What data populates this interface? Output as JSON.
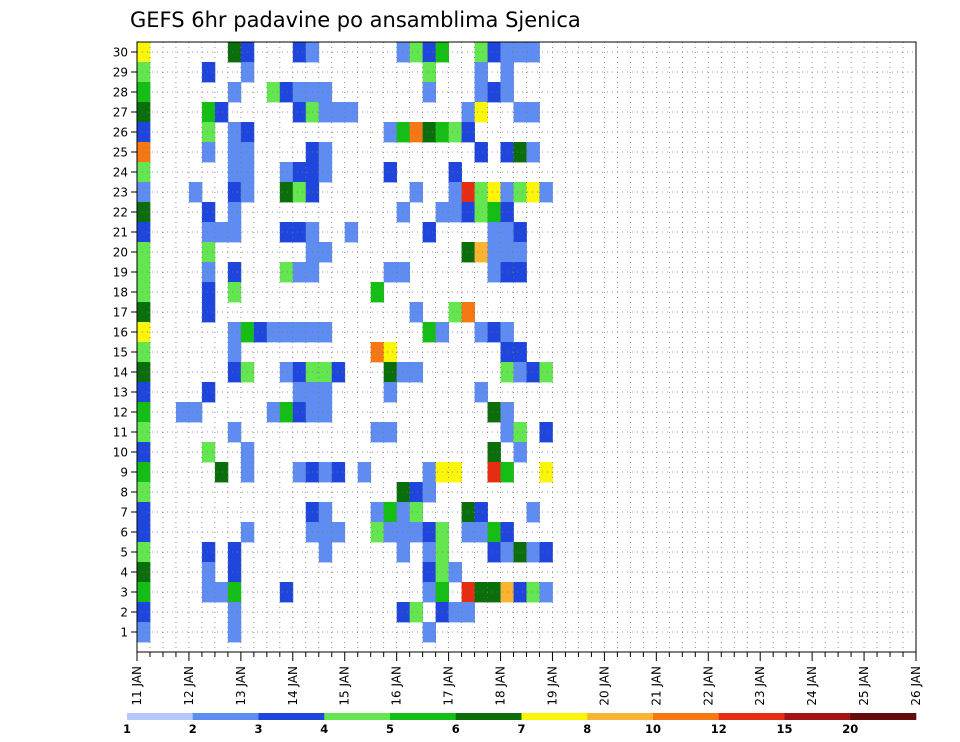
{
  "chart_data": {
    "type": "heatmap",
    "title": "GEFS 6hr padavine po ansamblima Sjenica",
    "xlabel": "",
    "ylabel": "",
    "x_tick_labels": [
      "11 JAN",
      "12 JAN",
      "13 JAN",
      "14 JAN",
      "15 JAN",
      "16 JAN",
      "17 JAN",
      "18 JAN",
      "19 JAN",
      "20 JAN",
      "21 JAN",
      "22 JAN",
      "23 JAN",
      "24 JAN",
      "25 JAN",
      "26 JAN"
    ],
    "y_tick_labels": [
      "1",
      "2",
      "3",
      "4",
      "5",
      "6",
      "7",
      "8",
      "9",
      "10",
      "11",
      "12",
      "13",
      "14",
      "15",
      "16",
      "17",
      "18",
      "19",
      "20",
      "21",
      "22",
      "23",
      "24",
      "25",
      "26",
      "27",
      "28",
      "29",
      "30"
    ],
    "x_range_days": [
      11,
      26
    ],
    "time_step_hours": 6,
    "ensemble_members": 30,
    "grid": "dotted",
    "colorbar": {
      "position": "bottom",
      "labels": [
        "1",
        "2",
        "3",
        "4",
        "5",
        "6",
        "7",
        "8",
        "10",
        "12",
        "15",
        "20"
      ],
      "colors": [
        "#b4c8fa",
        "#5f8cf0",
        "#1e46dc",
        "#64e650",
        "#14be14",
        "#0a6e0a",
        "#faf50a",
        "#fab432",
        "#f57814",
        "#e62d14",
        "#a51414",
        "#640a0a"
      ]
    },
    "cells": [
      [
        30,
        0,
        6
      ],
      [
        30,
        7,
        5
      ],
      [
        30,
        8,
        2
      ],
      [
        30,
        12,
        2
      ],
      [
        30,
        13,
        1
      ],
      [
        30,
        20,
        1
      ],
      [
        30,
        21,
        3
      ],
      [
        30,
        22,
        2
      ],
      [
        30,
        23,
        4
      ],
      [
        30,
        26,
        3
      ],
      [
        30,
        27,
        2
      ],
      [
        30,
        28,
        1
      ],
      [
        30,
        29,
        1
      ],
      [
        30,
        30,
        1
      ],
      [
        29,
        0,
        3
      ],
      [
        29,
        5,
        2
      ],
      [
        29,
        8,
        1
      ],
      [
        29,
        22,
        3
      ],
      [
        29,
        26,
        1
      ],
      [
        29,
        28,
        1
      ],
      [
        28,
        0,
        4
      ],
      [
        28,
        7,
        1
      ],
      [
        28,
        10,
        3
      ],
      [
        28,
        11,
        2
      ],
      [
        28,
        12,
        1
      ],
      [
        28,
        13,
        1
      ],
      [
        28,
        14,
        1
      ],
      [
        28,
        22,
        1
      ],
      [
        28,
        26,
        1
      ],
      [
        28,
        27,
        2
      ],
      [
        28,
        28,
        1
      ],
      [
        27,
        0,
        5
      ],
      [
        27,
        5,
        4
      ],
      [
        27,
        6,
        2
      ],
      [
        27,
        12,
        2
      ],
      [
        27,
        13,
        3
      ],
      [
        27,
        14,
        1
      ],
      [
        27,
        15,
        1
      ],
      [
        27,
        16,
        1
      ],
      [
        27,
        25,
        1
      ],
      [
        27,
        26,
        6
      ],
      [
        27,
        29,
        1
      ],
      [
        27,
        30,
        1
      ],
      [
        26,
        0,
        2
      ],
      [
        26,
        5,
        3
      ],
      [
        26,
        7,
        1
      ],
      [
        26,
        8,
        2
      ],
      [
        26,
        19,
        1
      ],
      [
        26,
        20,
        4
      ],
      [
        26,
        21,
        8
      ],
      [
        26,
        22,
        5
      ],
      [
        26,
        23,
        4
      ],
      [
        26,
        24,
        3
      ],
      [
        26,
        25,
        2
      ],
      [
        25,
        0,
        8
      ],
      [
        25,
        5,
        1
      ],
      [
        25,
        7,
        1
      ],
      [
        25,
        8,
        1
      ],
      [
        25,
        13,
        2
      ],
      [
        25,
        14,
        1
      ],
      [
        25,
        26,
        2
      ],
      [
        25,
        28,
        2
      ],
      [
        25,
        29,
        5
      ],
      [
        25,
        30,
        1
      ],
      [
        24,
        0,
        3
      ],
      [
        24,
        7,
        1
      ],
      [
        24,
        8,
        1
      ],
      [
        24,
        11,
        1
      ],
      [
        24,
        12,
        2
      ],
      [
        24,
        13,
        2
      ],
      [
        24,
        14,
        1
      ],
      [
        24,
        19,
        2
      ],
      [
        24,
        24,
        2
      ],
      [
        23,
        0,
        1
      ],
      [
        23,
        4,
        1
      ],
      [
        23,
        7,
        2
      ],
      [
        23,
        8,
        1
      ],
      [
        23,
        11,
        5
      ],
      [
        23,
        12,
        3
      ],
      [
        23,
        13,
        2
      ],
      [
        23,
        21,
        1
      ],
      [
        23,
        24,
        1
      ],
      [
        23,
        25,
        9
      ],
      [
        23,
        26,
        3
      ],
      [
        23,
        27,
        6
      ],
      [
        23,
        28,
        1
      ],
      [
        23,
        29,
        3
      ],
      [
        23,
        30,
        6
      ],
      [
        23,
        31,
        1
      ],
      [
        22,
        0,
        5
      ],
      [
        22,
        5,
        2
      ],
      [
        22,
        7,
        1
      ],
      [
        22,
        20,
        1
      ],
      [
        22,
        23,
        1
      ],
      [
        22,
        24,
        1
      ],
      [
        22,
        25,
        2
      ],
      [
        22,
        26,
        3
      ],
      [
        22,
        27,
        4
      ],
      [
        22,
        28,
        2
      ],
      [
        21,
        0,
        2
      ],
      [
        21,
        5,
        1
      ],
      [
        21,
        6,
        1
      ],
      [
        21,
        7,
        1
      ],
      [
        21,
        11,
        2
      ],
      [
        21,
        12,
        2
      ],
      [
        21,
        13,
        1
      ],
      [
        21,
        16,
        1
      ],
      [
        21,
        22,
        2
      ],
      [
        21,
        27,
        1
      ],
      [
        21,
        28,
        1
      ],
      [
        21,
        29,
        2
      ],
      [
        20,
        0,
        3
      ],
      [
        20,
        5,
        3
      ],
      [
        20,
        13,
        1
      ],
      [
        20,
        14,
        1
      ],
      [
        20,
        25,
        5
      ],
      [
        20,
        26,
        7
      ],
      [
        20,
        27,
        1
      ],
      [
        20,
        28,
        1
      ],
      [
        20,
        29,
        1
      ],
      [
        19,
        0,
        3
      ],
      [
        19,
        5,
        1
      ],
      [
        19,
        7,
        2
      ],
      [
        19,
        11,
        3
      ],
      [
        19,
        12,
        1
      ],
      [
        19,
        13,
        1
      ],
      [
        19,
        19,
        1
      ],
      [
        19,
        20,
        1
      ],
      [
        19,
        27,
        1
      ],
      [
        19,
        28,
        2
      ],
      [
        19,
        29,
        2
      ],
      [
        18,
        0,
        3
      ],
      [
        18,
        5,
        2
      ],
      [
        18,
        7,
        3
      ],
      [
        18,
        18,
        4
      ],
      [
        17,
        0,
        5
      ],
      [
        17,
        5,
        2
      ],
      [
        17,
        21,
        1
      ],
      [
        17,
        24,
        3
      ],
      [
        17,
        25,
        8
      ],
      [
        16,
        0,
        6
      ],
      [
        16,
        7,
        1
      ],
      [
        16,
        8,
        4
      ],
      [
        16,
        9,
        2
      ],
      [
        16,
        10,
        1
      ],
      [
        16,
        11,
        1
      ],
      [
        16,
        12,
        1
      ],
      [
        16,
        13,
        1
      ],
      [
        16,
        14,
        1
      ],
      [
        16,
        22,
        4
      ],
      [
        16,
        23,
        1
      ],
      [
        16,
        26,
        1
      ],
      [
        16,
        27,
        2
      ],
      [
        16,
        28,
        1
      ],
      [
        15,
        0,
        3
      ],
      [
        15,
        7,
        1
      ],
      [
        15,
        18,
        8
      ],
      [
        15,
        19,
        6
      ],
      [
        15,
        28,
        2
      ],
      [
        15,
        29,
        2
      ],
      [
        14,
        0,
        5
      ],
      [
        14,
        7,
        2
      ],
      [
        14,
        8,
        3
      ],
      [
        14,
        11,
        1
      ],
      [
        14,
        12,
        2
      ],
      [
        14,
        13,
        3
      ],
      [
        14,
        14,
        3
      ],
      [
        14,
        15,
        2
      ],
      [
        14,
        19,
        5
      ],
      [
        14,
        20,
        1
      ],
      [
        14,
        21,
        1
      ],
      [
        14,
        28,
        3
      ],
      [
        14,
        29,
        1
      ],
      [
        14,
        30,
        2
      ],
      [
        14,
        31,
        3
      ],
      [
        13,
        0,
        2
      ],
      [
        13,
        5,
        2
      ],
      [
        13,
        12,
        1
      ],
      [
        13,
        13,
        1
      ],
      [
        13,
        14,
        1
      ],
      [
        13,
        19,
        1
      ],
      [
        13,
        26,
        1
      ],
      [
        12,
        0,
        4
      ],
      [
        12,
        3,
        1
      ],
      [
        12,
        4,
        1
      ],
      [
        12,
        10,
        1
      ],
      [
        12,
        11,
        4
      ],
      [
        12,
        12,
        2
      ],
      [
        12,
        13,
        1
      ],
      [
        12,
        14,
        1
      ],
      [
        12,
        27,
        5
      ],
      [
        12,
        28,
        1
      ],
      [
        11,
        0,
        3
      ],
      [
        11,
        7,
        1
      ],
      [
        11,
        18,
        1
      ],
      [
        11,
        19,
        1
      ],
      [
        11,
        28,
        1
      ],
      [
        11,
        29,
        3
      ],
      [
        11,
        31,
        2
      ],
      [
        10,
        0,
        2
      ],
      [
        10,
        5,
        3
      ],
      [
        10,
        8,
        1
      ],
      [
        10,
        27,
        5
      ],
      [
        10,
        29,
        1
      ],
      [
        9,
        0,
        4
      ],
      [
        9,
        6,
        5
      ],
      [
        9,
        8,
        1
      ],
      [
        9,
        12,
        1
      ],
      [
        9,
        13,
        2
      ],
      [
        9,
        14,
        1
      ],
      [
        9,
        15,
        2
      ],
      [
        9,
        17,
        1
      ],
      [
        9,
        22,
        1
      ],
      [
        9,
        23,
        6
      ],
      [
        9,
        24,
        6
      ],
      [
        9,
        27,
        9
      ],
      [
        9,
        28,
        4
      ],
      [
        9,
        31,
        6
      ],
      [
        8,
        0,
        3
      ],
      [
        8,
        20,
        5
      ],
      [
        8,
        21,
        2
      ],
      [
        8,
        22,
        1
      ],
      [
        7,
        0,
        2
      ],
      [
        7,
        13,
        2
      ],
      [
        7,
        14,
        1
      ],
      [
        7,
        18,
        1
      ],
      [
        7,
        19,
        4
      ],
      [
        7,
        20,
        1
      ],
      [
        7,
        21,
        3
      ],
      [
        7,
        25,
        5
      ],
      [
        7,
        26,
        2
      ],
      [
        7,
        30,
        1
      ],
      [
        6,
        0,
        2
      ],
      [
        6,
        8,
        1
      ],
      [
        6,
        13,
        1
      ],
      [
        6,
        14,
        1
      ],
      [
        6,
        15,
        1
      ],
      [
        6,
        18,
        3
      ],
      [
        6,
        19,
        1
      ],
      [
        6,
        20,
        1
      ],
      [
        6,
        21,
        1
      ],
      [
        6,
        22,
        2
      ],
      [
        6,
        23,
        3
      ],
      [
        6,
        25,
        1
      ],
      [
        6,
        26,
        1
      ],
      [
        6,
        27,
        4
      ],
      [
        6,
        28,
        2
      ],
      [
        5,
        0,
        3
      ],
      [
        5,
        5,
        2
      ],
      [
        5,
        7,
        2
      ],
      [
        5,
        14,
        1
      ],
      [
        5,
        20,
        1
      ],
      [
        5,
        22,
        1
      ],
      [
        5,
        23,
        3
      ],
      [
        5,
        27,
        2
      ],
      [
        5,
        28,
        1
      ],
      [
        5,
        29,
        5
      ],
      [
        5,
        30,
        1
      ],
      [
        5,
        31,
        2
      ],
      [
        4,
        0,
        5
      ],
      [
        4,
        5,
        1
      ],
      [
        4,
        7,
        2
      ],
      [
        4,
        22,
        2
      ],
      [
        4,
        23,
        3
      ],
      [
        4,
        24,
        1
      ],
      [
        3,
        0,
        4
      ],
      [
        3,
        5,
        1
      ],
      [
        3,
        6,
        1
      ],
      [
        3,
        7,
        4
      ],
      [
        3,
        11,
        2
      ],
      [
        3,
        22,
        1
      ],
      [
        3,
        23,
        4
      ],
      [
        3,
        25,
        9
      ],
      [
        3,
        26,
        5
      ],
      [
        3,
        27,
        5
      ],
      [
        3,
        28,
        7
      ],
      [
        3,
        29,
        2
      ],
      [
        3,
        30,
        3
      ],
      [
        3,
        31,
        1
      ],
      [
        2,
        0,
        2
      ],
      [
        2,
        7,
        1
      ],
      [
        2,
        20,
        2
      ],
      [
        2,
        21,
        3
      ],
      [
        2,
        23,
        2
      ],
      [
        2,
        24,
        1
      ],
      [
        2,
        25,
        1
      ],
      [
        1,
        0,
        1
      ],
      [
        1,
        7,
        1
      ],
      [
        1,
        22,
        1
      ]
    ]
  }
}
